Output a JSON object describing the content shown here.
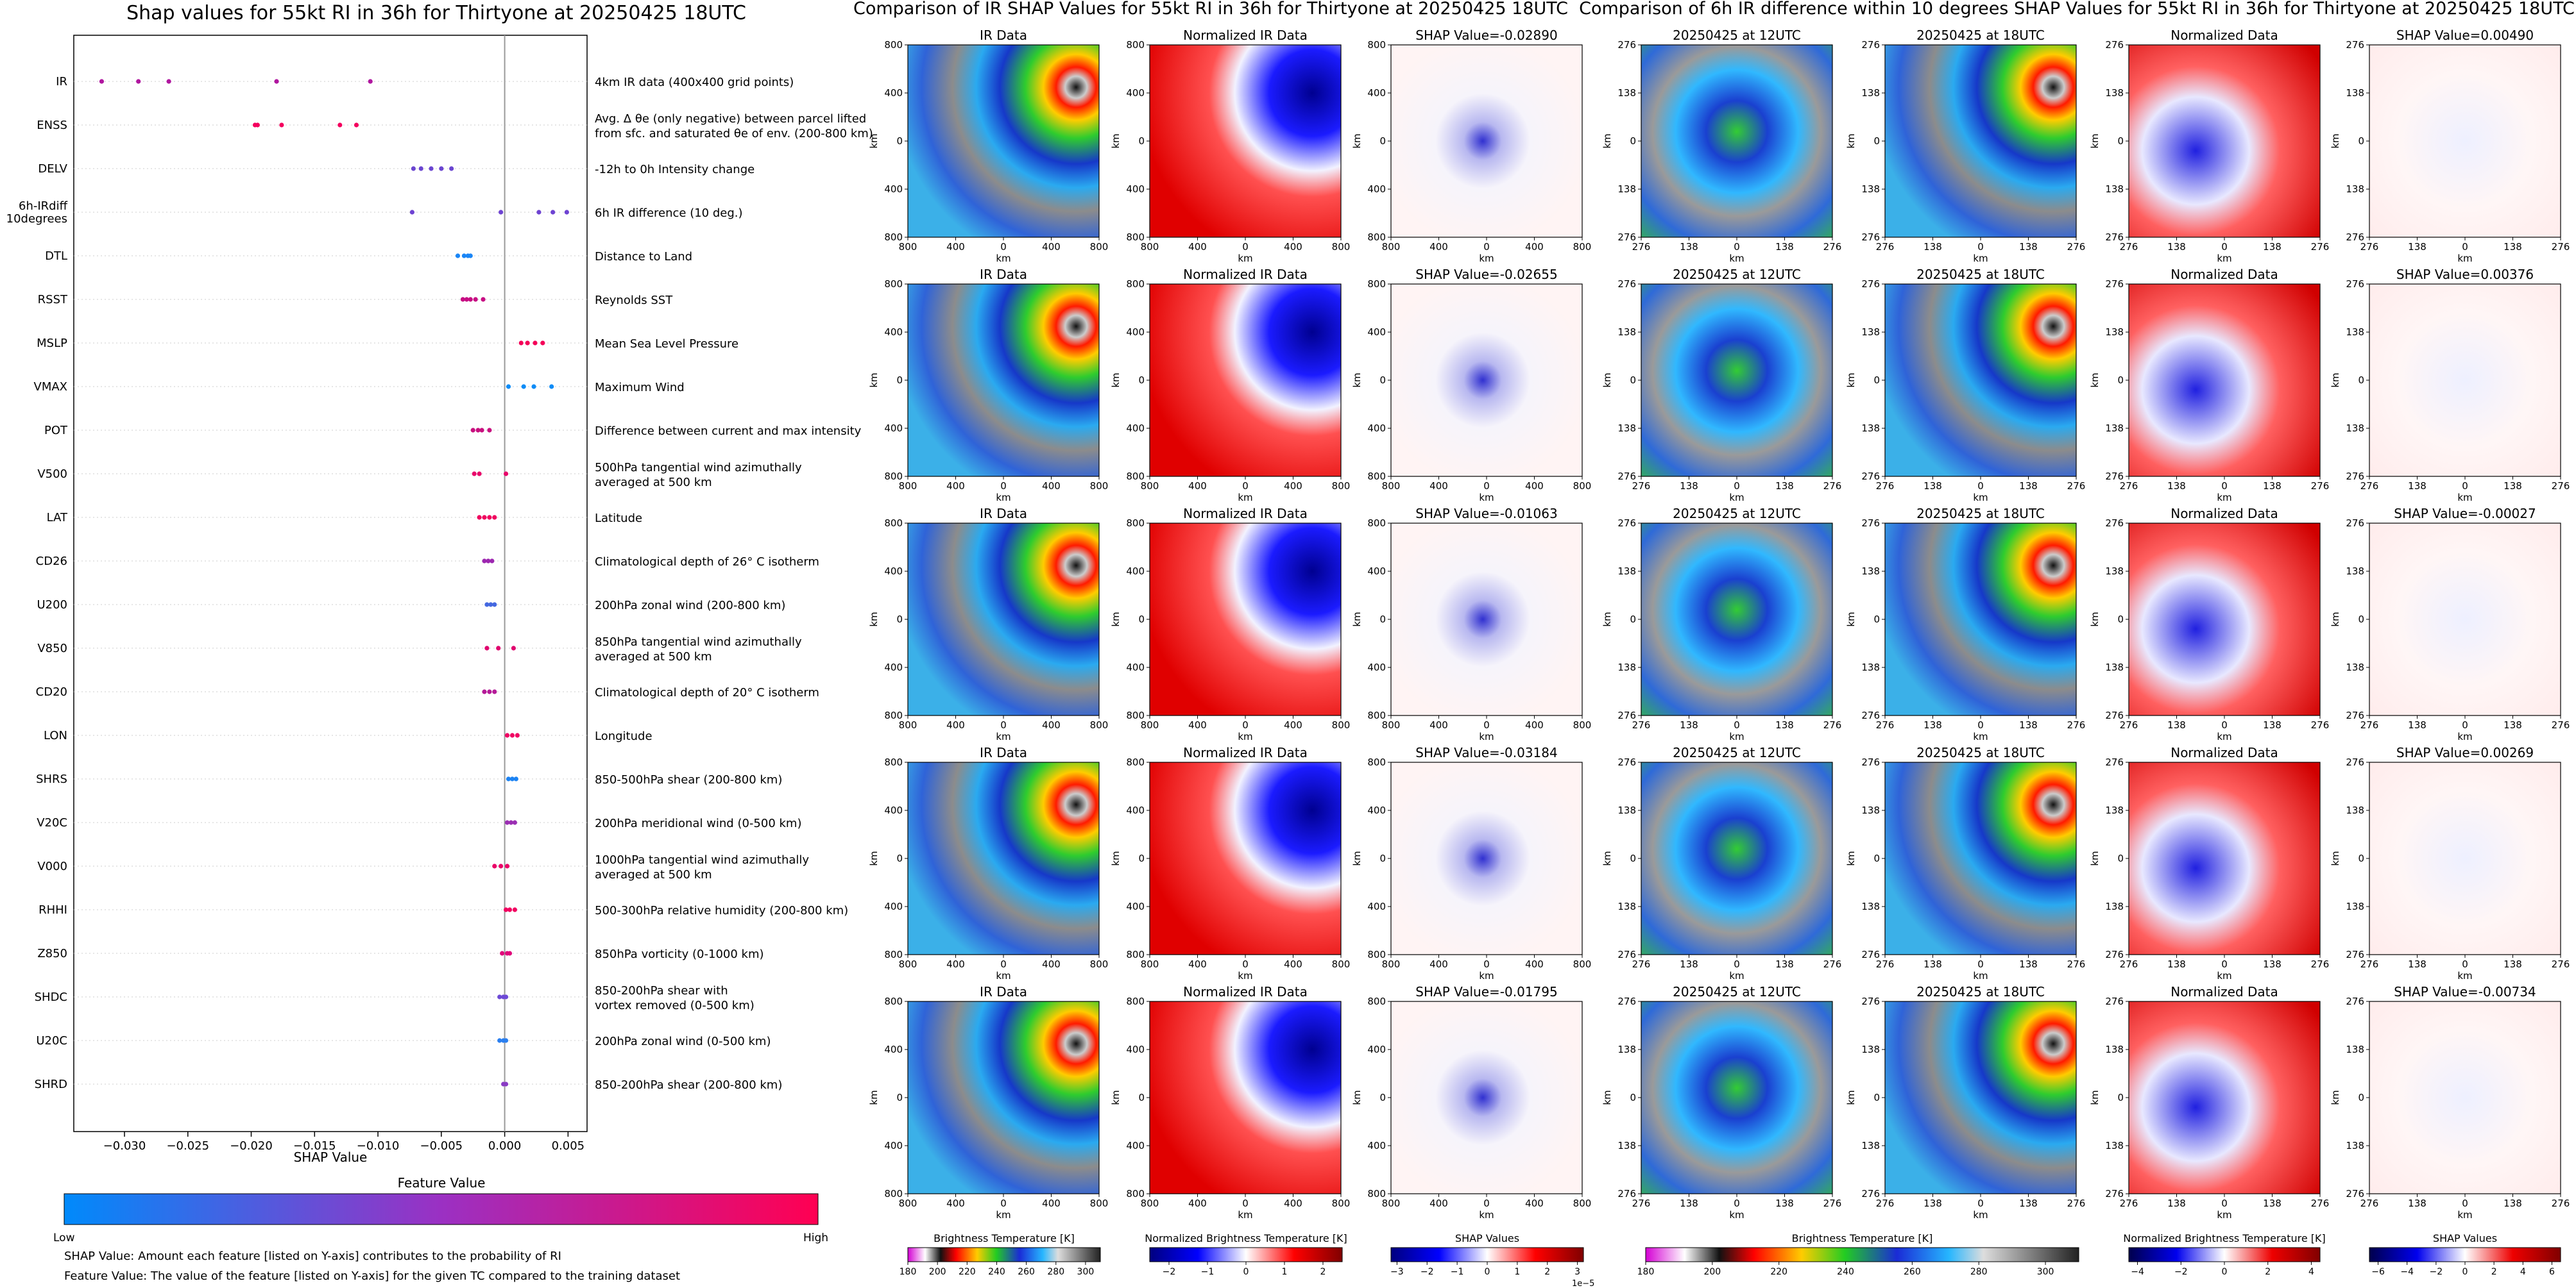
{
  "left_panel": {
    "title": "Shap values for 55kt RI in 36h for Thirtyone at 20250425 18UTC",
    "xlabel": "SHAP Value",
    "colorbar_title": "Feature Value",
    "colorbar_low": "Low",
    "colorbar_high": "High",
    "footnote_1": "SHAP Value: Amount each feature [listed on Y-axis] contributes to the probability of RI",
    "footnote_2": "Feature Value: The value of the feature [listed on Y-axis] for the given TC compared to the training dataset"
  },
  "chart_data": [
    {
      "type": "scatter",
      "subtype": "shap_beeswarm",
      "title": "Shap values for 55kt RI in 36h for Thirtyone at 20250425 18UTC",
      "xlabel": "SHAP Value",
      "xlim": [
        -0.034,
        0.0065
      ],
      "xticks": [
        -0.03,
        -0.025,
        -0.02,
        -0.015,
        -0.01,
        -0.005,
        0.0,
        0.005
      ],
      "xtick_labels": [
        "−0.030",
        "−0.025",
        "−0.020",
        "−0.015",
        "−0.010",
        "−0.005",
        "0.000",
        "0.005"
      ],
      "grid": false,
      "colormap": {
        "low": "#008afb",
        "high": "#ff0052"
      },
      "features": [
        {
          "name": "IR",
          "description": [
            "4km IR data (400x400 grid points)"
          ],
          "color": "#b0169f",
          "values": [
            -0.0318,
            -0.0289,
            -0.0265,
            -0.018,
            -0.0106
          ]
        },
        {
          "name": "ENSS",
          "description": [
            "Avg. Δ θe (only negative) between parcel lifted",
            "from sfc. and saturated θe of env. (200-800 km)"
          ],
          "color": "#f4005e",
          "values": [
            -0.0197,
            -0.0195,
            -0.0176,
            -0.013,
            -0.0117
          ]
        },
        {
          "name": "DELV",
          "description": [
            "-12h to 0h Intensity change"
          ],
          "color": "#6a45d0",
          "values": [
            -0.0072,
            -0.0066,
            -0.0058,
            -0.005,
            -0.0042
          ]
        },
        {
          "name": "6h-IRdiff\n10degrees",
          "description": [
            "6h IR difference (10 deg.)"
          ],
          "color": "#6e43d2",
          "values": [
            -0.0073,
            -0.0003,
            0.0027,
            0.0038,
            0.0049
          ]
        },
        {
          "name": "DTL",
          "description": [
            "Distance to Land"
          ],
          "color": "#1a86f6",
          "values": [
            -0.0037,
            -0.0032,
            -0.0029,
            -0.0027
          ]
        },
        {
          "name": "RSST",
          "description": [
            "Reynolds SST"
          ],
          "color": "#c70c83",
          "values": [
            -0.0033,
            -0.003,
            -0.0027,
            -0.0023,
            -0.0017
          ]
        },
        {
          "name": "MSLP",
          "description": [
            "Mean Sea Level Pressure"
          ],
          "color": "#f40058",
          "values": [
            0.0013,
            0.0018,
            0.0024,
            0.003
          ]
        },
        {
          "name": "VMAX",
          "description": [
            "Maximum Wind"
          ],
          "color": "#0e8cf7",
          "values": [
            0.0003,
            0.0015,
            0.0023,
            0.0037
          ]
        },
        {
          "name": "POT",
          "description": [
            "Difference between current and max intensity"
          ],
          "color": "#c8107f",
          "values": [
            -0.0025,
            -0.0021,
            -0.0018,
            -0.0012
          ]
        },
        {
          "name": "V500",
          "description": [
            "500hPa tangential wind azimuthally",
            "averaged at 500 km"
          ],
          "color": "#e8066a",
          "values": [
            -0.0024,
            -0.002,
            0.0001
          ]
        },
        {
          "name": "LAT",
          "description": [
            "Latitude"
          ],
          "color": "#f0005e",
          "values": [
            -0.002,
            -0.0016,
            -0.0012,
            -0.0008
          ]
        },
        {
          "name": "CD26",
          "description": [
            "Climatological depth of 26° C isotherm"
          ],
          "color": "#9d27b0",
          "values": [
            -0.0016,
            -0.0013,
            -0.001
          ]
        },
        {
          "name": "U200",
          "description": [
            "200hPa zonal wind (200-800 km)"
          ],
          "color": "#4468e0",
          "values": [
            -0.0014,
            -0.0011,
            -0.0008
          ]
        },
        {
          "name": "V850",
          "description": [
            "850hPa tangential wind azimuthally",
            "averaged at 500 km"
          ],
          "color": "#e0036e",
          "values": [
            -0.0014,
            -0.0005,
            0.0007
          ]
        },
        {
          "name": "CD20",
          "description": [
            "Climatological depth of 20° C isotherm"
          ],
          "color": "#b51a98",
          "values": [
            -0.0016,
            -0.0012,
            -0.0008
          ]
        },
        {
          "name": "LON",
          "description": [
            "Longitude"
          ],
          "color": "#f00063",
          "values": [
            0.0002,
            0.0006,
            0.001
          ]
        },
        {
          "name": "SHRS",
          "description": [
            "850-500hPa shear (200-800 km)"
          ],
          "color": "#1c83f3",
          "values": [
            0.0003,
            0.0006,
            0.0009
          ]
        },
        {
          "name": "V20C",
          "description": [
            "200hPa meridional wind (0-500 km)"
          ],
          "color": "#9b2fb3",
          "values": [
            0.0002,
            0.0005,
            0.0008
          ]
        },
        {
          "name": "V000",
          "description": [
            "1000hPa tangential wind azimuthally",
            "averaged at 500 km"
          ],
          "color": "#ea0067",
          "values": [
            -0.0008,
            -0.0003,
            0.0002
          ]
        },
        {
          "name": "RHHI",
          "description": [
            "500-300hPa relative humidity (200-800 km)"
          ],
          "color": "#f20060",
          "values": [
            0.0001,
            0.0004,
            0.0008
          ]
        },
        {
          "name": "Z850",
          "description": [
            "850hPa vorticity (0-1000 km)"
          ],
          "color": "#e0047a",
          "values": [
            -0.0002,
            0.0002,
            0.0004
          ]
        },
        {
          "name": "SHDC",
          "description": [
            "850-200hPa shear with",
            "vortex removed (0-500 km)"
          ],
          "color": "#6d49d6",
          "values": [
            -0.0004,
            -0.0001,
            0.0001
          ]
        },
        {
          "name": "U20C",
          "description": [
            "200hPa zonal wind (0-500 km)"
          ],
          "color": "#2a7ff0",
          "values": [
            -0.0004,
            -0.0001,
            0.0001
          ]
        },
        {
          "name": "SHRD",
          "description": [
            "850-200hPa shear (200-800 km)"
          ],
          "color": "#8a3bc4",
          "values": [
            -0.0001,
            0.0001
          ]
        }
      ]
    },
    {
      "type": "heatmap",
      "title": "Comparison of IR SHAP Values for 55kt RI in 36h for Thirtyone at 20250425 18UTC",
      "column_titles": [
        "IR Data",
        "Normalized IR Data",
        "SHAP Value={v}"
      ],
      "shap_values": [
        "-0.02890",
        "-0.02655",
        "-0.01063",
        "-0.03184",
        "-0.01795"
      ],
      "axis_unit": "km",
      "ytick_labels": [
        "800",
        "400",
        "0",
        "400",
        "800"
      ],
      "xtick_labels": [
        "800",
        "400",
        "0",
        "400",
        "800"
      ],
      "xlim_km": [
        -800,
        800
      ],
      "ylim_km": [
        -800,
        800
      ],
      "colorbars": [
        {
          "label": "Brightness Temperature [K]",
          "ticks": [
            "180",
            "200",
            "220",
            "240",
            "260",
            "280",
            "300"
          ],
          "range": [
            180,
            310
          ]
        },
        {
          "label": "Normalized Brightness Temperature [K]",
          "ticks": [
            "−2",
            "−1",
            "0",
            "1",
            "2"
          ],
          "range": [
            -2.5,
            2.5
          ]
        },
        {
          "label": "SHAP Values",
          "ticks": [
            "−3",
            "−2",
            "−1",
            "0",
            "1",
            "2",
            "3"
          ],
          "range": [
            -3.2,
            3.2
          ],
          "exponent": "1e−5"
        }
      ]
    },
    {
      "type": "heatmap",
      "title": "Comparison of 6h IR difference within 10 degrees SHAP Values for 55kt RI in 36h for Thirtyone at 20250425 18UTC",
      "column_titles": [
        "20250425 at 12UTC",
        "20250425 at 18UTC",
        "Normalized Data",
        "SHAP Value={v}"
      ],
      "shap_values": [
        "0.00490",
        "0.00376",
        "-0.00027",
        "0.00269",
        "-0.00734"
      ],
      "axis_unit": "km",
      "ytick_labels": [
        "276",
        "138",
        "0",
        "138",
        "276"
      ],
      "xtick_labels": [
        "276",
        "138",
        "0",
        "138",
        "276"
      ],
      "xlim_km": [
        -276,
        276
      ],
      "ylim_km": [
        -276,
        276
      ],
      "colorbars": [
        {
          "label": "Brightness Temperature [K]",
          "ticks": [
            "180",
            "200",
            "220",
            "240",
            "260",
            "280",
            "300"
          ],
          "range": [
            180,
            310
          ]
        },
        {
          "label": "Normalized Brightness Temperature [K]",
          "ticks": [
            "−4",
            "−2",
            "0",
            "2",
            "4"
          ],
          "range": [
            -4.4,
            4.4
          ]
        },
        {
          "label": "SHAP Values",
          "ticks": [
            "−6",
            "−4",
            "−2",
            "0",
            "2",
            "4",
            "6"
          ],
          "range": [
            -6.6,
            6.6
          ]
        }
      ]
    }
  ]
}
